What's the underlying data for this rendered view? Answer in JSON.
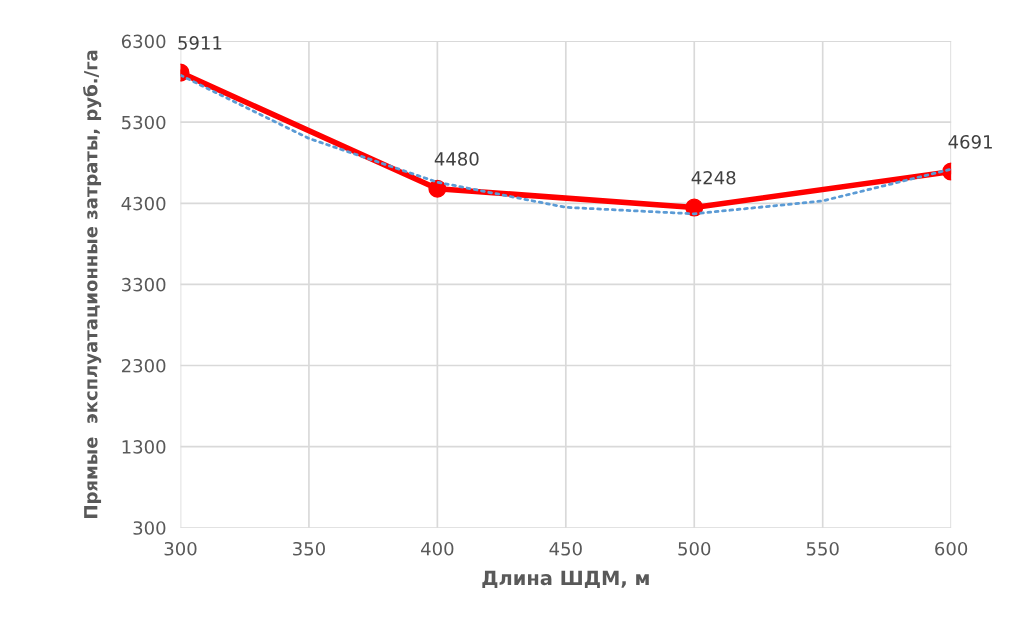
{
  "chart_data": {
    "type": "line",
    "xlabel": "Длина ШДМ, м",
    "ylabel": "Прямые  эксплуатационные затраты, руб./га",
    "xlim": [
      300,
      600
    ],
    "xticks": [
      300,
      350,
      400,
      450,
      500,
      550,
      600
    ],
    "ylim": [
      300,
      6300
    ],
    "yticks": [
      300,
      1300,
      2300,
      3300,
      4300,
      5300,
      6300
    ],
    "grid": true,
    "series": [
      {
        "color": "#ff0000",
        "x": [
          300,
          400,
          500,
          600
        ],
        "values": [
          5911,
          4480,
          4248,
          4691
        ],
        "marker": "circle",
        "line_style": "solid",
        "data_labels": true
      },
      {
        "type": "line",
        "color": "#5b9bd5",
        "x": [
          300,
          350,
          400,
          450,
          500,
          550,
          600
        ],
        "values": [
          5880,
          5100,
          4560,
          4250,
          4170,
          4330,
          4720
        ],
        "marker": "none",
        "line_style": "dotted"
      }
    ]
  }
}
